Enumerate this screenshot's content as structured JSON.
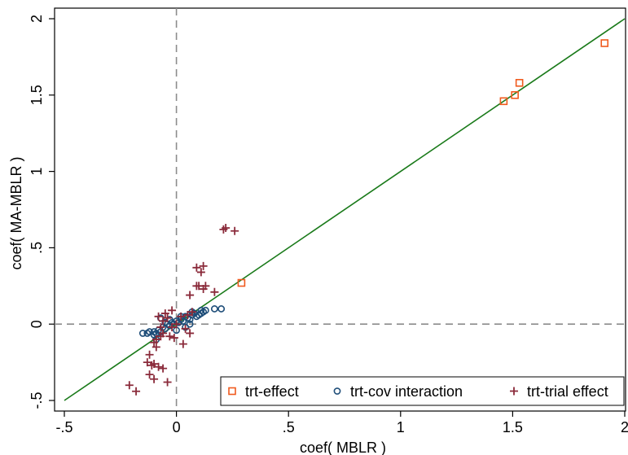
{
  "chart_data": {
    "type": "scatter",
    "xlabel": "coef( MBLR )",
    "ylabel": "coef( MA-MBLR )",
    "xlim": [
      -0.5,
      2
    ],
    "ylim": [
      -0.5,
      2
    ],
    "xticks": [
      -0.5,
      0,
      0.5,
      1,
      1.5,
      2
    ],
    "xtick_labels": [
      "-.5",
      "0",
      ".5",
      "1",
      "1.5",
      "2"
    ],
    "yticks": [
      -0.5,
      0,
      0.5,
      1,
      1.5,
      2
    ],
    "ytick_labels": [
      "-.5",
      "0",
      ".5",
      "1",
      "1.5",
      "2"
    ],
    "reference_lines": {
      "x": 0,
      "y": 0,
      "style": "dashed",
      "color": "#8c8c8c"
    },
    "identity_line": {
      "from": [
        -0.5,
        -0.5
      ],
      "to": [
        2,
        2
      ],
      "color": "#1a7a1a"
    },
    "grid": false,
    "legend_position": "bottom-right",
    "series": [
      {
        "name": "trt-effect",
        "marker": "square",
        "color": "#f05a1e",
        "points": [
          [
            1.91,
            1.84
          ],
          [
            1.53,
            1.58
          ],
          [
            1.51,
            1.5
          ],
          [
            1.46,
            1.46
          ],
          [
            0.29,
            0.27
          ]
        ]
      },
      {
        "name": "trt-cov interaction",
        "marker": "circle",
        "color": "#1f4e79",
        "points": [
          [
            -0.15,
            -0.06
          ],
          [
            -0.13,
            -0.06
          ],
          [
            -0.12,
            -0.05
          ],
          [
            -0.1,
            -0.07
          ],
          [
            -0.09,
            -0.06
          ],
          [
            -0.08,
            -0.04
          ],
          [
            -0.07,
            -0.05
          ],
          [
            -0.06,
            -0.02
          ],
          [
            -0.05,
            -0.03
          ],
          [
            -0.04,
            0.0
          ],
          [
            -0.03,
            -0.01
          ],
          [
            -0.02,
            0.01
          ],
          [
            -0.01,
            0.0
          ],
          [
            0.0,
            0.02
          ],
          [
            0.01,
            0.01
          ],
          [
            0.02,
            0.03
          ],
          [
            0.03,
            0.02
          ],
          [
            0.04,
            0.05
          ],
          [
            0.05,
            0.04
          ],
          [
            0.06,
            0.03
          ],
          [
            0.07,
            0.06
          ],
          [
            0.08,
            0.07
          ],
          [
            0.09,
            0.05
          ],
          [
            0.1,
            0.06
          ],
          [
            0.11,
            0.07
          ],
          [
            0.12,
            0.08
          ],
          [
            0.13,
            0.09
          ],
          [
            0.17,
            0.1
          ],
          [
            0.2,
            0.1
          ],
          [
            -0.07,
            0.04
          ],
          [
            -0.05,
            0.01
          ],
          [
            0.06,
            0.0
          ],
          [
            -0.09,
            -0.1
          ],
          [
            -0.1,
            -0.05
          ],
          [
            0.0,
            -0.04
          ],
          [
            0.04,
            -0.02
          ],
          [
            0.02,
            0.05
          ],
          [
            -0.03,
            0.03
          ],
          [
            0.07,
            0.08
          ],
          [
            0.11,
            0.09
          ]
        ]
      },
      {
        "name": "trt-trial effect",
        "marker": "plus",
        "color": "#8a2a3a",
        "points": [
          [
            0.21,
            0.62
          ],
          [
            0.22,
            0.63
          ],
          [
            0.26,
            0.61
          ],
          [
            0.12,
            0.38
          ],
          [
            0.09,
            0.37
          ],
          [
            0.11,
            0.34
          ],
          [
            0.17,
            0.21
          ],
          [
            0.06,
            0.19
          ],
          [
            0.1,
            0.25
          ],
          [
            0.13,
            0.25
          ],
          [
            0.09,
            0.25
          ],
          [
            0.12,
            0.23
          ],
          [
            0.05,
            0.06
          ],
          [
            0.07,
            0.08
          ],
          [
            -0.02,
            0.09
          ],
          [
            -0.05,
            0.07
          ],
          [
            -0.08,
            0.05
          ],
          [
            -0.04,
            0.04
          ],
          [
            -0.06,
            0.02
          ],
          [
            0.0,
            0.0
          ],
          [
            -0.02,
            -0.02
          ],
          [
            0.04,
            -0.03
          ],
          [
            0.06,
            -0.06
          ],
          [
            -0.07,
            -0.08
          ],
          [
            -0.09,
            -0.1
          ],
          [
            -0.1,
            -0.12
          ],
          [
            -0.03,
            -0.08
          ],
          [
            -0.06,
            -0.06
          ],
          [
            0.03,
            -0.13
          ],
          [
            -0.09,
            -0.15
          ],
          [
            -0.12,
            -0.2
          ],
          [
            -0.13,
            -0.25
          ],
          [
            -0.1,
            -0.26
          ],
          [
            -0.11,
            -0.27
          ],
          [
            -0.08,
            -0.28
          ],
          [
            -0.06,
            -0.29
          ],
          [
            -0.12,
            -0.33
          ],
          [
            -0.1,
            -0.36
          ],
          [
            -0.04,
            -0.38
          ],
          [
            -0.21,
            -0.4
          ],
          [
            -0.18,
            -0.44
          ],
          [
            -0.07,
            -0.02
          ],
          [
            0.02,
            0.05
          ],
          [
            -0.01,
            -0.09
          ]
        ]
      }
    ]
  }
}
